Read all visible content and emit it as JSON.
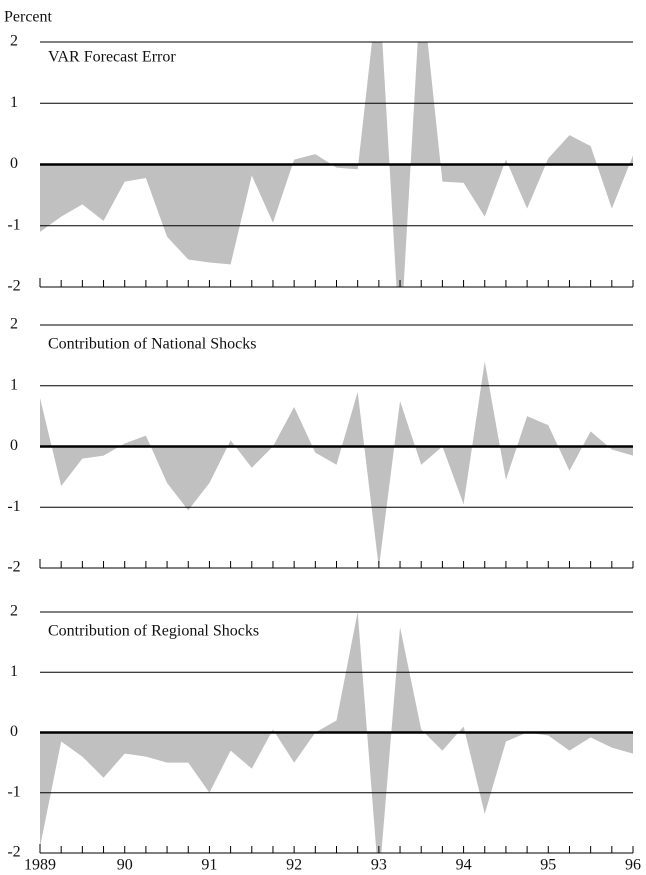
{
  "chart_data": [
    {
      "type": "area",
      "ylabel": "Percent",
      "title": "VAR Forecast Error",
      "color": "#c0c0c0",
      "x": [
        1989,
        1989.25,
        1989.5,
        1989.75,
        1990,
        1990.25,
        1990.5,
        1990.75,
        1991,
        1991.25,
        1991.5,
        1991.75,
        1992,
        1992.25,
        1992.5,
        1992.75,
        1993,
        1993.25,
        1993.5,
        1993.75,
        1994,
        1994.25,
        1994.5,
        1994.75,
        1995,
        1995.25,
        1995.5,
        1995.75,
        1996
      ],
      "values": [
        -1.1,
        -0.85,
        -0.65,
        -0.92,
        -0.28,
        -0.22,
        -1.18,
        -1.55,
        -1.6,
        -1.63,
        -0.18,
        -0.95,
        0.08,
        0.17,
        -0.05,
        -0.08,
        3.0,
        -3.0,
        3.0,
        -0.28,
        -0.3,
        -0.85,
        0.08,
        -0.72,
        0.1,
        0.48,
        0.3,
        -0.72,
        0.15
      ],
      "xlim": [
        1989,
        1996
      ],
      "ylim": [
        -2,
        2
      ],
      "yticks": [
        -2,
        -1,
        0,
        1,
        2
      ]
    },
    {
      "type": "area",
      "title": "Contribution of National Shocks",
      "color": "#c0c0c0",
      "x": [
        1989,
        1989.25,
        1989.5,
        1989.75,
        1990,
        1990.25,
        1990.5,
        1990.75,
        1991,
        1991.25,
        1991.5,
        1991.75,
        1992,
        1992.25,
        1992.5,
        1992.75,
        1993,
        1993.25,
        1993.5,
        1993.75,
        1994,
        1994.25,
        1994.5,
        1994.75,
        1995,
        1995.25,
        1995.5,
        1995.75,
        1996
      ],
      "values": [
        0.8,
        -0.65,
        -0.2,
        -0.15,
        0.05,
        0.18,
        -0.6,
        -1.05,
        -0.6,
        0.1,
        -0.35,
        0.0,
        0.65,
        -0.1,
        -0.3,
        0.9,
        -2.0,
        0.75,
        -0.3,
        0.0,
        -0.95,
        1.4,
        -0.55,
        0.5,
        0.35,
        -0.4,
        0.25,
        -0.05,
        -0.15
      ],
      "xlim": [
        1989,
        1996
      ],
      "ylim": [
        -2,
        2
      ],
      "yticks": [
        -2,
        -1,
        0,
        1,
        2
      ]
    },
    {
      "type": "area",
      "title": "Contribution of Regional Shocks",
      "color": "#c0c0c0",
      "x": [
        1989,
        1989.25,
        1989.5,
        1989.75,
        1990,
        1990.25,
        1990.5,
        1990.75,
        1991,
        1991.25,
        1991.5,
        1991.75,
        1992,
        1992.25,
        1992.5,
        1992.75,
        1993,
        1993.25,
        1993.5,
        1993.75,
        1994,
        1994.25,
        1994.5,
        1994.75,
        1995,
        1995.25,
        1995.5,
        1995.75,
        1996
      ],
      "values": [
        -1.9,
        -0.15,
        -0.4,
        -0.75,
        -0.35,
        -0.4,
        -0.5,
        -0.5,
        -1.0,
        -0.3,
        -0.6,
        0.05,
        -0.5,
        0.0,
        0.2,
        2.0,
        -2.5,
        1.75,
        0.05,
        -0.3,
        0.1,
        -1.35,
        -0.15,
        0.0,
        -0.05,
        -0.3,
        -0.08,
        -0.25,
        -0.35
      ],
      "xlim": [
        1989,
        1996
      ],
      "ylim": [
        -2,
        2
      ],
      "yticks": [
        -2,
        -1,
        0,
        1,
        2
      ],
      "xticks": [
        {
          "value": 1989,
          "label": "1989"
        },
        {
          "value": 1990,
          "label": "90"
        },
        {
          "value": 1991,
          "label": "91"
        },
        {
          "value": 1992,
          "label": "92"
        },
        {
          "value": 1993,
          "label": "93"
        },
        {
          "value": 1994,
          "label": "94"
        },
        {
          "value": 1995,
          "label": "95"
        },
        {
          "value": 1996,
          "label": "96"
        }
      ]
    }
  ]
}
